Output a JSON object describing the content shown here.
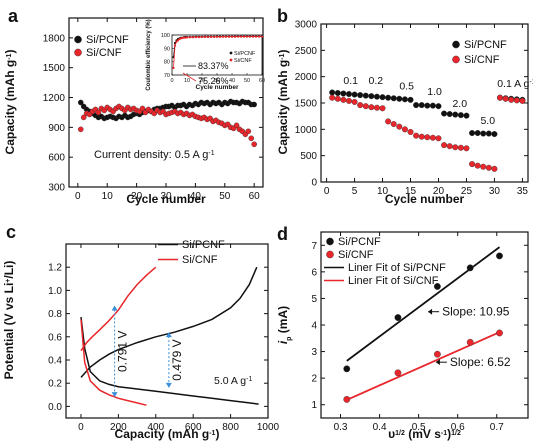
{
  "colors": {
    "black": "#111111",
    "red": "#e8262b",
    "blue": "#3a8fd6"
  },
  "chart_data": [
    {
      "panel_label": "a",
      "type": "scatter",
      "xlabel": "Cycle number",
      "ylabel": "Capacity (mAh g",
      "ylabel_sup": "-1",
      "xlim": [
        -3,
        63
      ],
      "ylim": [
        300,
        2000
      ],
      "xticks": [
        0,
        10,
        20,
        30,
        40,
        50,
        60
      ],
      "yticks": [
        300,
        600,
        900,
        1200,
        1500,
        1800
      ],
      "legend": [
        "Si/PCNF",
        "Si/CNF"
      ],
      "legend_position": "top-left",
      "annotation": "Current density: 0.5 A g",
      "annotation_sup": "-1",
      "series": [
        {
          "name": "Si/PCNF",
          "color": "black",
          "x": [
            1,
            2,
            3,
            4,
            5,
            6,
            7,
            8,
            9,
            10,
            11,
            12,
            13,
            14,
            15,
            16,
            17,
            18,
            19,
            20,
            21,
            22,
            23,
            24,
            25,
            26,
            27,
            28,
            29,
            30,
            31,
            32,
            33,
            34,
            35,
            36,
            37,
            38,
            39,
            40,
            41,
            42,
            43,
            44,
            45,
            46,
            47,
            48,
            49,
            50,
            51,
            52,
            53,
            54,
            55,
            56,
            57,
            58,
            59,
            60
          ],
          "y": [
            1150,
            1110,
            1080,
            1060,
            1040,
            1020,
            1000,
            1010,
            990,
            1000,
            1010,
            1000,
            990,
            1010,
            1000,
            1020,
            1000,
            1010,
            1030,
            1040,
            1030,
            1050,
            1060,
            1070,
            1060,
            1080,
            1090,
            1090,
            1100,
            1110,
            1110,
            1120,
            1100,
            1120,
            1120,
            1130,
            1110,
            1130,
            1120,
            1140,
            1130,
            1150,
            1140,
            1150,
            1130,
            1150,
            1140,
            1150,
            1130,
            1150,
            1140,
            1160,
            1150,
            1150,
            1140,
            1160,
            1150,
            1150,
            1130,
            1130
          ]
        },
        {
          "name": "Si/CNF",
          "color": "red",
          "x": [
            1,
            2,
            3,
            4,
            5,
            6,
            7,
            8,
            9,
            10,
            11,
            12,
            13,
            14,
            15,
            16,
            17,
            18,
            19,
            20,
            21,
            22,
            23,
            24,
            25,
            26,
            27,
            28,
            29,
            30,
            31,
            32,
            33,
            34,
            35,
            36,
            37,
            38,
            39,
            40,
            41,
            42,
            43,
            44,
            45,
            46,
            47,
            48,
            49,
            50,
            51,
            52,
            53,
            54,
            55,
            56,
            57,
            58,
            59,
            60
          ],
          "y": [
            880,
            1000,
            1040,
            1030,
            1060,
            1080,
            1050,
            1090,
            1070,
            1100,
            1080,
            1060,
            1090,
            1110,
            1090,
            1070,
            1100,
            1080,
            1090,
            1070,
            1060,
            1090,
            1050,
            1080,
            1060,
            1040,
            1070,
            1050,
            1060,
            1030,
            1040,
            1050,
            1060,
            1040,
            1050,
            1030,
            1040,
            1020,
            1030,
            1010,
            1000,
            990,
            1000,
            980,
            990,
            960,
            970,
            950,
            940,
            920,
            930,
            900,
            890,
            920,
            880,
            860,
            830,
            860,
            790,
            730
          ]
        }
      ],
      "inset": {
        "xlabel": "Cycle number",
        "ylabel": "Coulombic efficiency (%)",
        "xlim": [
          0,
          60
        ],
        "ylim": [
          70,
          100
        ],
        "xticks": [
          0,
          10,
          20,
          30,
          40,
          50,
          60
        ],
        "yticks": [
          70,
          80,
          90,
          100
        ],
        "legend": [
          "Si/PCNF",
          "Si/CNF"
        ],
        "labels": [
          {
            "text": "83.37%",
            "x": 8,
            "y": 83.37
          },
          {
            "text": "75.26%",
            "x": 8,
            "y": 75.26
          }
        ],
        "series": [
          {
            "name": "Si/PCNF",
            "color": "black",
            "x": [
              1,
              2,
              3,
              4,
              5,
              6,
              7,
              8,
              9,
              10,
              12,
              14,
              16,
              18,
              20,
              22,
              24,
              26,
              28,
              30,
              32,
              34,
              36,
              38,
              40,
              42,
              44,
              46,
              48,
              50,
              52,
              54,
              56,
              58,
              60
            ],
            "y": [
              83.37,
              94,
              96,
              97,
              97.5,
              98,
              98,
              98.3,
              98.5,
              98.5,
              98.6,
              98.6,
              98.7,
              98.7,
              98.7,
              98.8,
              98.8,
              98.8,
              98.8,
              98.9,
              98.9,
              98.9,
              98.9,
              98.9,
              98.9,
              99,
              99,
              99,
              99,
              99,
              99,
              99,
              99,
              99,
              99
            ]
          },
          {
            "name": "Si/CNF",
            "color": "red",
            "x": [
              1,
              2,
              3,
              4,
              5,
              6,
              7,
              8,
              9,
              10,
              12,
              14,
              16,
              18,
              20,
              22,
              24,
              26,
              28,
              30,
              32,
              34,
              36,
              38,
              40,
              42,
              44,
              46,
              48,
              50,
              52,
              54,
              56,
              58,
              60
            ],
            "y": [
              75.26,
              92,
              95,
              96,
              97,
              97.5,
              97.8,
              98,
              98,
              98.2,
              98.3,
              98.3,
              98.4,
              98.4,
              98.5,
              98.5,
              98.5,
              98.6,
              98.6,
              98.6,
              98.6,
              98.7,
              98.7,
              98.7,
              98.7,
              98.7,
              98.8,
              98.8,
              98.8,
              98.8,
              98.8,
              98.8,
              98.8,
              98.8,
              98.8
            ]
          }
        ]
      }
    },
    {
      "panel_label": "b",
      "type": "scatter",
      "xlabel": "Cycle number",
      "ylabel": "Capacity (mAh g",
      "ylabel_sup": "-1",
      "xlim": [
        -1,
        36
      ],
      "ylim": [
        0,
        3000
      ],
      "xticks": [
        0,
        5,
        10,
        15,
        20,
        25,
        30,
        35
      ],
      "yticks": [
        0,
        500,
        1000,
        1500,
        2000,
        2500,
        3000
      ],
      "legend": [
        "Si/PCNF",
        "Si/CNF"
      ],
      "legend_position": "top-right",
      "rate_labels": [
        {
          "text": "0.1",
          "x": 3,
          "y": 1860
        },
        {
          "text": "0.2",
          "x": 7.5,
          "y": 1860
        },
        {
          "text": "0.5",
          "x": 13,
          "y": 1760
        },
        {
          "text": "1.0",
          "x": 18,
          "y": 1650
        },
        {
          "text": "2.0",
          "x": 22.5,
          "y": 1420
        },
        {
          "text": "5.0",
          "x": 27.5,
          "y": 1100
        },
        {
          "text": "0.1 A g",
          "sup": "-1",
          "x": 30.5,
          "y": 1800
        }
      ],
      "series": [
        {
          "name": "Si/PCNF",
          "color": "black",
          "x": [
            1,
            2,
            3,
            4,
            5,
            6,
            7,
            8,
            9,
            10,
            11,
            12,
            13,
            14,
            15,
            16,
            17,
            18,
            19,
            20,
            21,
            22,
            23,
            24,
            25,
            26,
            27,
            28,
            29,
            30,
            31,
            32,
            33,
            34,
            35
          ],
          "y": [
            1700,
            1690,
            1680,
            1670,
            1660,
            1650,
            1640,
            1630,
            1620,
            1610,
            1600,
            1590,
            1580,
            1570,
            1560,
            1460,
            1460,
            1450,
            1450,
            1440,
            1300,
            1290,
            1280,
            1270,
            1260,
            930,
            930,
            920,
            920,
            910,
            1600,
            1590,
            1580,
            1570,
            1560
          ]
        },
        {
          "name": "Si/CNF",
          "color": "red",
          "x": [
            1,
            2,
            3,
            4,
            5,
            6,
            7,
            8,
            9,
            10,
            11,
            12,
            13,
            14,
            15,
            16,
            17,
            18,
            19,
            20,
            21,
            22,
            23,
            24,
            25,
            26,
            27,
            28,
            29,
            30,
            31,
            32,
            33,
            34,
            35
          ],
          "y": [
            1600,
            1580,
            1560,
            1540,
            1520,
            1460,
            1440,
            1420,
            1410,
            1400,
            1150,
            1100,
            1050,
            1000,
            950,
            880,
            860,
            850,
            840,
            830,
            700,
            680,
            660,
            650,
            640,
            340,
            310,
            290,
            270,
            250,
            1600,
            1580,
            1560,
            1550,
            1540
          ]
        }
      ]
    },
    {
      "panel_label": "c",
      "type": "line",
      "xlabel": "Capacity (mAh g",
      "xlabel_sup": "-1",
      "ylabel": "Potential (V vs Li",
      "ylabel_sup": "+",
      "ylabel_tail": "/Li)",
      "xlim": [
        -80,
        1000
      ],
      "ylim": [
        -0.1,
        1.4
      ],
      "xticks": [
        0,
        200,
        400,
        600,
        800,
        1000
      ],
      "yticks": [
        0.0,
        0.2,
        0.4,
        0.6,
        0.8,
        1.0,
        1.2
      ],
      "legend": [
        "Si/PCNF",
        "Si/CNF"
      ],
      "legend_position": "top-right",
      "annotation": "5.0 A g",
      "annotation_sup": "-1",
      "voltage_gaps": [
        {
          "text": "0.791 V",
          "x": 180,
          "y_low": 0.08,
          "y_high": 0.87
        },
        {
          "text": "0.479 V",
          "x": 470,
          "y_low": 0.16,
          "y_high": 0.64
        }
      ],
      "series": [
        {
          "name": "Si/PCNF",
          "color": "black",
          "part": "discharge",
          "x": [
            0,
            20,
            50,
            100,
            150,
            200,
            300,
            400,
            500,
            600,
            700,
            800,
            900,
            950
          ],
          "y": [
            0.77,
            0.5,
            0.3,
            0.22,
            0.19,
            0.17,
            0.15,
            0.13,
            0.11,
            0.09,
            0.07,
            0.05,
            0.03,
            0.02
          ]
        },
        {
          "name": "Si/PCNF",
          "color": "black",
          "part": "charge",
          "x": [
            0,
            50,
            100,
            150,
            200,
            300,
            400,
            500,
            600,
            700,
            800,
            850,
            900,
            940
          ],
          "y": [
            0.25,
            0.34,
            0.4,
            0.45,
            0.49,
            0.55,
            0.6,
            0.64,
            0.69,
            0.75,
            0.85,
            0.93,
            1.05,
            1.2
          ]
        },
        {
          "name": "Si/CNF",
          "color": "red",
          "part": "discharge",
          "x": [
            0,
            20,
            50,
            100,
            150,
            200,
            250,
            300,
            350
          ],
          "y": [
            0.75,
            0.38,
            0.22,
            0.14,
            0.1,
            0.07,
            0.05,
            0.03,
            0.01
          ]
        },
        {
          "name": "Si/CNF",
          "color": "red",
          "part": "charge",
          "x": [
            0,
            30,
            60,
            100,
            150,
            200,
            250,
            300,
            350,
            400
          ],
          "y": [
            0.48,
            0.55,
            0.6,
            0.66,
            0.74,
            0.83,
            0.95,
            1.05,
            1.13,
            1.2
          ]
        }
      ]
    },
    {
      "panel_label": "d",
      "type": "scatter",
      "xlabel": "υ",
      "xlabel_sup": "1/2",
      "xlabel_tail": " (mV s",
      "xlabel_sup2": "-1",
      "xlabel_tail2": ")",
      "xlabel_sup3": "1/2",
      "ylabel": "i",
      "ylabel_sub": "p",
      "ylabel_tail": " (mA)",
      "xlim": [
        0.25,
        0.78
      ],
      "ylim": [
        0.5,
        7.5
      ],
      "xticks": [
        0.3,
        0.4,
        0.5,
        0.6,
        0.7
      ],
      "yticks": [
        1,
        2,
        3,
        4,
        5,
        6,
        7
      ],
      "legend": [
        "Si/PCNF",
        "Si/CNF",
        "Liner Fit of Si/PCNF",
        "Liner Fit of Si/CNF"
      ],
      "legend_position": "top-left",
      "slope_labels": [
        {
          "text": "Slope: 10.95",
          "x": 0.56,
          "y": 4.35
        },
        {
          "text": "Slope: 6.52",
          "x": 0.58,
          "y": 2.45
        }
      ],
      "series": [
        {
          "name": "Si/PCNF",
          "color": "black",
          "x": [
            0.316,
            0.447,
            0.548,
            0.632,
            0.707
          ],
          "y": [
            2.35,
            4.28,
            5.45,
            6.15,
            6.6
          ]
        },
        {
          "name": "Si/CNF",
          "color": "red",
          "x": [
            0.316,
            0.447,
            0.548,
            0.632,
            0.707
          ],
          "y": [
            1.2,
            2.2,
            2.9,
            3.35,
            3.7
          ]
        },
        {
          "name": "Liner Fit of Si/PCNF",
          "color": "black",
          "fit": true,
          "x": [
            0.316,
            0.707
          ],
          "y": [
            2.65,
            6.93
          ]
        },
        {
          "name": "Liner Fit of Si/CNF",
          "color": "red",
          "fit": true,
          "x": [
            0.316,
            0.707
          ],
          "y": [
            1.18,
            3.73
          ]
        }
      ]
    }
  ]
}
